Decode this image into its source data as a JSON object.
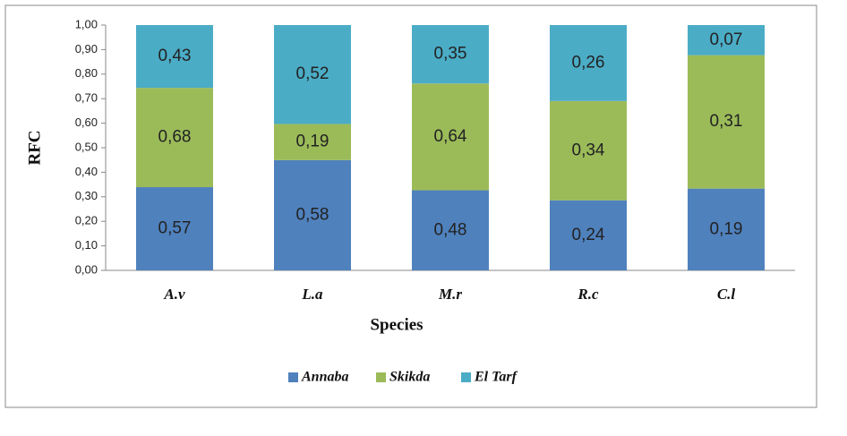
{
  "chart_data": {
    "type": "bar",
    "stacked": true,
    "normalize": true,
    "x_label": "Species",
    "y_label": "RFC",
    "categories": [
      "A.v",
      "L.a",
      "M.r",
      "R.c",
      "C.l"
    ],
    "series": [
      {
        "name": "Annaba",
        "color": "#4f81bd",
        "values": [
          0.57,
          0.58,
          0.48,
          0.24,
          0.19
        ],
        "value_labels": [
          "0,57",
          "0,58",
          "0,48",
          "0,24",
          "0,19"
        ]
      },
      {
        "name": "Skikda",
        "color": "#9bbb59",
        "values": [
          0.68,
          0.19,
          0.64,
          0.34,
          0.31
        ],
        "value_labels": [
          "0,68",
          "0,19",
          "0,64",
          "0,34",
          "0,31"
        ]
      },
      {
        "name": "El Tarf",
        "color": "#4bacc6",
        "values": [
          0.43,
          0.52,
          0.35,
          0.26,
          0.07
        ],
        "value_labels": [
          "0,43",
          "0,52",
          "0,35",
          "0,26",
          "0,07"
        ]
      }
    ],
    "ylim": [
      0,
      1
    ],
    "yticks": [
      {
        "value": 0,
        "label": "0,00"
      },
      {
        "value": 0.1,
        "label": "0,10"
      },
      {
        "value": 0.2,
        "label": "0,20"
      },
      {
        "value": 0.3,
        "label": "0,30"
      },
      {
        "value": 0.4,
        "label": "0,40"
      },
      {
        "value": 0.5,
        "label": "0,50"
      },
      {
        "value": 0.6,
        "label": "0,60"
      },
      {
        "value": 0.7,
        "label": "0,70"
      },
      {
        "value": 0.8,
        "label": "0,80"
      },
      {
        "value": 0.9,
        "label": "0,90"
      },
      {
        "value": 1,
        "label": "1,00"
      }
    ],
    "legend": "bottom",
    "grid": false
  }
}
